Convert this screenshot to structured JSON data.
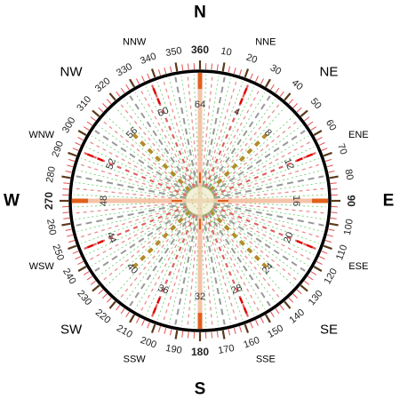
{
  "cardinals": [
    {
      "label": "N",
      "deg": 0
    },
    {
      "label": "E",
      "deg": 90
    },
    {
      "label": "S",
      "deg": 180
    },
    {
      "label": "W",
      "deg": 270
    }
  ],
  "intercardinals": [
    {
      "label": "NE",
      "deg": 45
    },
    {
      "label": "SE",
      "deg": 135
    },
    {
      "label": "SW",
      "deg": 225
    },
    {
      "label": "NW",
      "deg": 315
    }
  ],
  "secondary_intercardinals": [
    {
      "label": "NNE",
      "deg": 22.5
    },
    {
      "label": "ENE",
      "deg": 67.5
    },
    {
      "label": "ESE",
      "deg": 112.5
    },
    {
      "label": "SSE",
      "deg": 157.5
    },
    {
      "label": "SSW",
      "deg": 202.5
    },
    {
      "label": "WSW",
      "deg": 247.5
    },
    {
      "label": "WNW",
      "deg": 292.5
    },
    {
      "label": "NNW",
      "deg": 337.5
    }
  ],
  "degree_labels": [
    {
      "label": "360",
      "deg": 0,
      "bold": true
    },
    {
      "label": "10",
      "deg": 10,
      "bold": false
    },
    {
      "label": "20",
      "deg": 20,
      "bold": false
    },
    {
      "label": "30",
      "deg": 30,
      "bold": false
    },
    {
      "label": "40",
      "deg": 40,
      "bold": false
    },
    {
      "label": "50",
      "deg": 50,
      "bold": false
    },
    {
      "label": "60",
      "deg": 60,
      "bold": false
    },
    {
      "label": "70",
      "deg": 70,
      "bold": false
    },
    {
      "label": "80",
      "deg": 80,
      "bold": false
    },
    {
      "label": "90",
      "deg": 90,
      "bold": true
    },
    {
      "label": "100",
      "deg": 100,
      "bold": false
    },
    {
      "label": "110",
      "deg": 110,
      "bold": false
    },
    {
      "label": "120",
      "deg": 120,
      "bold": false
    },
    {
      "label": "130",
      "deg": 130,
      "bold": false
    },
    {
      "label": "140",
      "deg": 140,
      "bold": false
    },
    {
      "label": "150",
      "deg": 150,
      "bold": false
    },
    {
      "label": "160",
      "deg": 160,
      "bold": false
    },
    {
      "label": "170",
      "deg": 170,
      "bold": false
    },
    {
      "label": "180",
      "deg": 180,
      "bold": true
    },
    {
      "label": "190",
      "deg": 190,
      "bold": false
    },
    {
      "label": "200",
      "deg": 200,
      "bold": false
    },
    {
      "label": "210",
      "deg": 210,
      "bold": false
    },
    {
      "label": "220",
      "deg": 220,
      "bold": false
    },
    {
      "label": "230",
      "deg": 230,
      "bold": false
    },
    {
      "label": "240",
      "deg": 240,
      "bold": false
    },
    {
      "label": "250",
      "deg": 250,
      "bold": false
    },
    {
      "label": "260",
      "deg": 260,
      "bold": false
    },
    {
      "label": "270",
      "deg": 270,
      "bold": true
    },
    {
      "label": "280",
      "deg": 280,
      "bold": false
    },
    {
      "label": "290",
      "deg": 290,
      "bold": false
    },
    {
      "label": "300",
      "deg": 300,
      "bold": false
    },
    {
      "label": "310",
      "deg": 310,
      "bold": false
    },
    {
      "label": "320",
      "deg": 320,
      "bold": false
    },
    {
      "label": "330",
      "deg": 330,
      "bold": false
    },
    {
      "label": "340",
      "deg": 340,
      "bold": false
    },
    {
      "label": "350",
      "deg": 350,
      "bold": false
    }
  ],
  "point_labels": [
    {
      "label": "64",
      "deg": 0
    },
    {
      "label": "4",
      "deg": 22.5
    },
    {
      "label": "8",
      "deg": 45
    },
    {
      "label": "12",
      "deg": 67.5
    },
    {
      "label": "16",
      "deg": 90
    },
    {
      "label": "20",
      "deg": 112.5
    },
    {
      "label": "24",
      "deg": 135
    },
    {
      "label": "28",
      "deg": 157.5
    },
    {
      "label": "32",
      "deg": 180
    },
    {
      "label": "36",
      "deg": 202.5
    },
    {
      "label": "40",
      "deg": 225
    },
    {
      "label": "44",
      "deg": 247.5
    },
    {
      "label": "48",
      "deg": 270
    },
    {
      "label": "52",
      "deg": 292.5
    },
    {
      "label": "56",
      "deg": 315
    },
    {
      "label": "60",
      "deg": 337.5
    }
  ],
  "colors": {
    "ring": "#000000",
    "cardinal_spoke": "#f4c3a8",
    "cardinal_marker": "#e0601c",
    "intercardinal_spoke": "#b58a2a",
    "eighth_spoke": "#e06060",
    "sixteenth_spoke": "#999999",
    "thirtysecond_spoke": "#e89090",
    "fine_spoke": "#66cc66",
    "tick_major": "#5a3a1a",
    "tick_minor": "#e05050",
    "center_hatch": "#c9c98a"
  }
}
